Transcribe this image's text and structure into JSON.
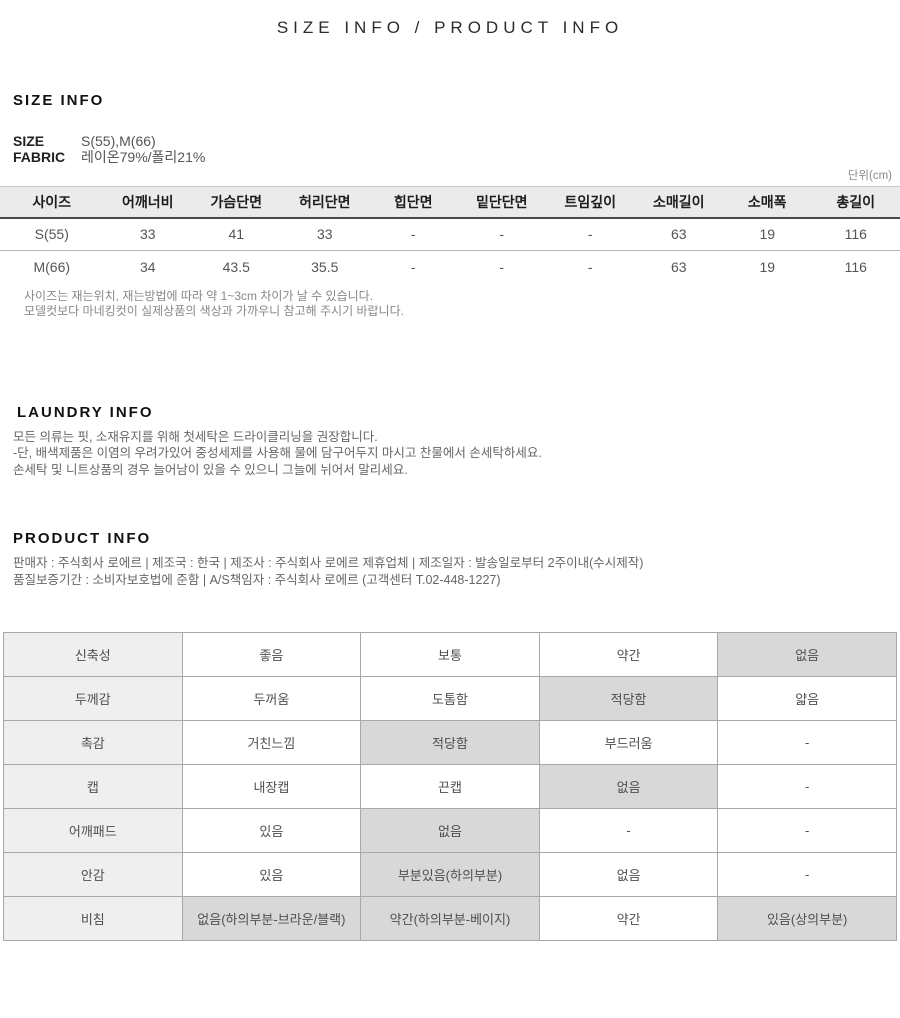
{
  "page": {
    "title": "SIZE INFO / PRODUCT INFO"
  },
  "size_info": {
    "heading": "SIZE INFO",
    "meta": [
      {
        "label": "SIZE",
        "value": "S(55),M(66)"
      },
      {
        "label": "FABRIC",
        "value": "레이온79%/폴리21%"
      }
    ],
    "unit_note": "단위(cm)",
    "table": {
      "headers": [
        "사이즈",
        "어깨너비",
        "가슴단면",
        "허리단면",
        "힙단면",
        "밑단단면",
        "트임깊이",
        "소매길이",
        "소매폭",
        "총길이"
      ],
      "rows": [
        {
          "cells": [
            "S(55)",
            "33",
            "41",
            "33",
            "-",
            "-",
            "-",
            "63",
            "19",
            "116"
          ]
        },
        {
          "cells": [
            "M(66)",
            "34",
            "43.5",
            "35.5",
            "-",
            "-",
            "-",
            "63",
            "19",
            "116"
          ]
        }
      ]
    },
    "notes": [
      "사이즈는 재는위치, 재는방법에 따라 약 1~3cm 차이가 날 수 있습니다.",
      "모델컷보다 마네킹컷이 실제상품의 색상과 가까우니 참고해 주시기 바랍니다."
    ]
  },
  "laundry_info": {
    "heading": "LAUNDRY INFO",
    "lines": [
      "모든 의류는 핏, 소재유지를 위해 첫세탁은 드라이클리닝을 권장합니다.",
      "-단, 배색제품은 이염의 우려가있어 중성세제를 사용해 물에 담구어두지 마시고 찬물에서 손세탁하세요.",
      "손세탁 및 니트상품의 경우 늘어남이 있을 수 있으니 그늘에 뉘어서 말리세요."
    ]
  },
  "product_info": {
    "heading": "PRODUCT INFO",
    "lines": [
      "판매자 : 주식회사 로에르 | 제조국 : 한국 | 제조사 : 주식회사 로에르 제휴업체 | 제조일자 : 발송일로부터 2주이내(수시제작)",
      "품질보증기간 : 소비자보호법에 준함 | A/S책임자 : 주식회사 로에르 (고객센터 T.02-448-1227)"
    ]
  },
  "attributes_table": {
    "rows": [
      {
        "label": "신축성",
        "cells": [
          {
            "text": "좋음",
            "selected": false
          },
          {
            "text": "보통",
            "selected": false
          },
          {
            "text": "약간",
            "selected": false
          },
          {
            "text": "없음",
            "selected": true
          }
        ]
      },
      {
        "label": "두께감",
        "cells": [
          {
            "text": "두꺼움",
            "selected": false
          },
          {
            "text": "도톰함",
            "selected": false
          },
          {
            "text": "적당함",
            "selected": true
          },
          {
            "text": "얇음",
            "selected": false
          }
        ]
      },
      {
        "label": "촉감",
        "cells": [
          {
            "text": "거친느낌",
            "selected": false
          },
          {
            "text": "적당함",
            "selected": true
          },
          {
            "text": "부드러움",
            "selected": false
          },
          {
            "text": "-",
            "selected": false
          }
        ]
      },
      {
        "label": "캡",
        "cells": [
          {
            "text": "내장캡",
            "selected": false
          },
          {
            "text": "끈캡",
            "selected": false
          },
          {
            "text": "없음",
            "selected": true
          },
          {
            "text": "-",
            "selected": false
          }
        ]
      },
      {
        "label": "어깨패드",
        "cells": [
          {
            "text": "있음",
            "selected": false
          },
          {
            "text": "없음",
            "selected": true
          },
          {
            "text": "-",
            "selected": false
          },
          {
            "text": "-",
            "selected": false
          }
        ]
      },
      {
        "label": "안감",
        "cells": [
          {
            "text": "있음",
            "selected": false
          },
          {
            "text": "부분있음(하의부분)",
            "selected": true
          },
          {
            "text": "없음",
            "selected": false
          },
          {
            "text": "-",
            "selected": false
          }
        ]
      },
      {
        "label": "비침",
        "cells": [
          {
            "text": "없음(하의부분-브라운/블랙)",
            "selected": true
          },
          {
            "text": "약간(하의부분-베이지)",
            "selected": true
          },
          {
            "text": "약간",
            "selected": false
          },
          {
            "text": "있음(상의부분)",
            "selected": true
          }
        ]
      }
    ]
  },
  "colors": {
    "highlight_gray": "#d8d8d8",
    "label_column_gray": "#efefef",
    "table_header_gray": "#ebebeb",
    "grid_border": "#a8a8a8"
  }
}
